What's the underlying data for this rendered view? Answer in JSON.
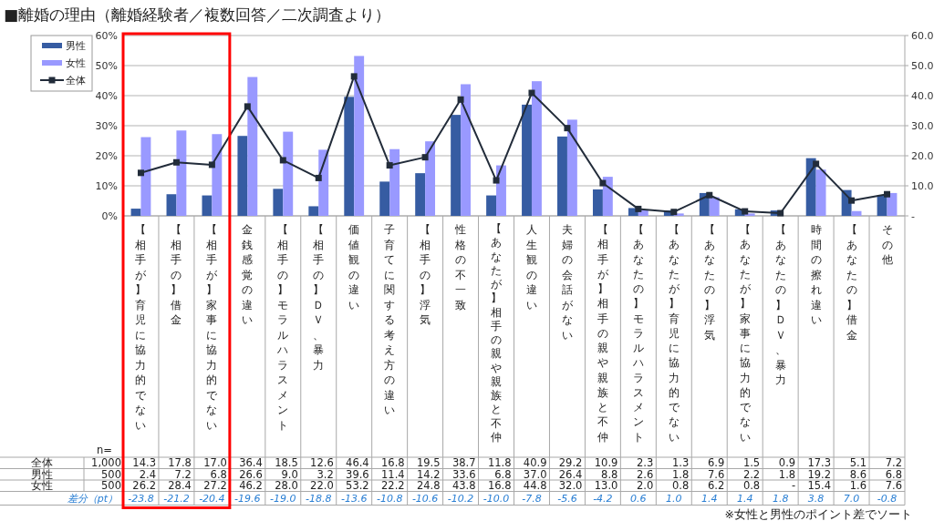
{
  "chart_data": {
    "type": "bar",
    "title": "■離婚の理由（離婚経験者／複数回答／二次調査より）",
    "categories": [
      "【相手が】育児に協力的でない",
      "【相手の】借金",
      "【相手が】家事に協力的でない",
      "金銭感覚の違い",
      "【相手の】モラルハラスメント",
      "【相手の】ＤＶ、暴力",
      "価値観の違い",
      "子育てに関する考え方の違い",
      "【相手の】浮気",
      "性格の不一致",
      "【あなたが】相手の親や親族と不仲",
      "人生観の違い",
      "夫婦の会話がない",
      "【相手が】相手の親や親族と不仲",
      "【あなたの】モラルハラスメント",
      "【あなたが】育児に協力的でない",
      "【あなたの】浮気",
      "【あなたが】家事に協力的でない",
      "【あなたの】ＤＶ、暴力",
      "時間の擦れ違い",
      "【あなたの】借金",
      "その他"
    ],
    "series": [
      {
        "name": "全体",
        "type": "line",
        "axis": "y2",
        "color": "#222c3a",
        "values": [
          14.3,
          17.8,
          17.0,
          36.4,
          18.5,
          12.6,
          46.4,
          16.8,
          19.5,
          38.7,
          11.8,
          40.9,
          29.2,
          10.9,
          2.3,
          1.3,
          6.9,
          1.5,
          0.9,
          17.3,
          5.1,
          7.2
        ],
        "value_labels": [
          "14.3",
          "17.8",
          "17.0",
          "36.4",
          "18.5",
          "12.6",
          "46.4",
          "16.8",
          "19.5",
          "38.7",
          "11.8",
          "40.9",
          "29.2",
          "10.9",
          "2.3",
          "1.3",
          "6.9",
          "1.5",
          "0.9",
          "17.3",
          "5.1",
          "7.2"
        ]
      },
      {
        "name": "男性",
        "color": "#365ca2",
        "values": [
          2.4,
          7.2,
          6.8,
          26.6,
          9.0,
          3.2,
          39.6,
          11.4,
          14.2,
          33.6,
          6.8,
          37.0,
          26.4,
          8.8,
          2.6,
          1.8,
          7.6,
          2.2,
          1.8,
          19.2,
          8.6,
          6.8
        ],
        "value_labels": [
          "2.4",
          "7.2",
          "6.8",
          "26.6",
          "9.0",
          "3.2",
          "39.6",
          "11.4",
          "14.2",
          "33.6",
          "6.8",
          "37.0",
          "26.4",
          "8.8",
          "2.6",
          "1.8",
          "7.6",
          "2.2",
          "1.8",
          "19.2",
          "8.6",
          "6.8"
        ]
      },
      {
        "name": "女性",
        "color": "#9999ff",
        "values": [
          26.2,
          28.4,
          27.2,
          46.2,
          28.0,
          22.0,
          53.2,
          22.2,
          24.8,
          43.8,
          16.8,
          44.8,
          32.0,
          13.0,
          2.0,
          0.8,
          6.2,
          0.8,
          0,
          15.4,
          1.6,
          7.6
        ],
        "value_labels": [
          "26.2",
          "28.4",
          "27.2",
          "46.2",
          "28.0",
          "22.0",
          "53.2",
          "22.2",
          "24.8",
          "43.8",
          "16.8",
          "44.8",
          "32.0",
          "13.0",
          "2.0",
          "0.8",
          "6.2",
          "0.8",
          "-",
          "15.4",
          "1.6",
          "7.6"
        ]
      }
    ],
    "ylim": [
      0,
      60
    ],
    "yticks": [
      {
        "value": 0,
        "label": "0%"
      },
      {
        "value": 10,
        "label": "10%"
      },
      {
        "value": 20,
        "label": "20%"
      },
      {
        "value": 30,
        "label": "30%"
      },
      {
        "value": 40,
        "label": "40%"
      },
      {
        "value": 50,
        "label": "50%"
      },
      {
        "value": 60,
        "label": "60%"
      }
    ],
    "y2lim": [
      0,
      60
    ],
    "y2ticks": [
      {
        "value": 0,
        "label": "-"
      },
      {
        "value": 10,
        "label": "10.0"
      },
      {
        "value": 20,
        "label": "20.0"
      },
      {
        "value": 30,
        "label": "30.0"
      },
      {
        "value": 40,
        "label": "40.0"
      },
      {
        "value": 50,
        "label": "50.0"
      },
      {
        "value": 60,
        "label": "60.0"
      }
    ],
    "grid": "y",
    "legend": "top left",
    "marker": "square",
    "annotations": [
      "n=",
      "1,000",
      "500",
      "500",
      "差分（pt）",
      "-23.8",
      "-21.2",
      "-20.4",
      "-19.6",
      "-19.0",
      "-18.8",
      "-13.6",
      "-10.8",
      "-10.6",
      "-10.2",
      "-10.0",
      "-7.8",
      "-5.6",
      "-4.2",
      "0.6",
      "1.0",
      "1.4",
      "1.4",
      "1.8",
      "3.8",
      "7.0",
      "-0.8",
      "※女性と男性のポイント差でソート"
    ]
  }
}
